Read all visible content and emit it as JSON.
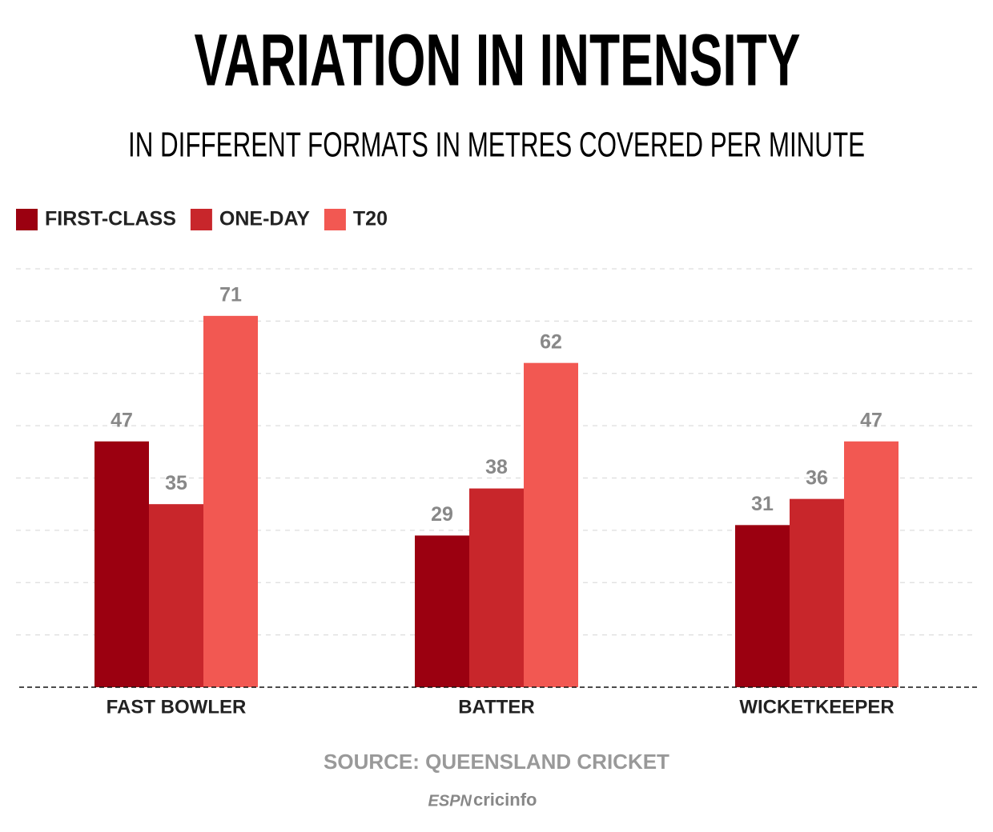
{
  "chart_data": {
    "type": "bar",
    "title": "VARIATION IN INTENSITY",
    "subtitle": "IN DIFFERENT FORMATS IN METRES COVERED PER MINUTE",
    "categories": [
      "FAST BOWLER",
      "BATTER",
      "WICKETKEEPER"
    ],
    "series": [
      {
        "name": "FIRST-CLASS",
        "color": "#9b0010",
        "values": [
          47,
          29,
          31
        ]
      },
      {
        "name": "ONE-DAY",
        "color": "#c8262b",
        "values": [
          35,
          38,
          36
        ]
      },
      {
        "name": "T20",
        "color": "#f25852",
        "values": [
          71,
          62,
          47
        ]
      }
    ],
    "ylim": [
      0,
      80
    ],
    "yticks": [
      10,
      20,
      30,
      40,
      50,
      60,
      70,
      80
    ],
    "grid": true,
    "legend": "top-left",
    "source": "SOURCE: QUEENSLAND CRICKET",
    "logo_brand": "ESPN",
    "logo_name": "cricinfo"
  }
}
